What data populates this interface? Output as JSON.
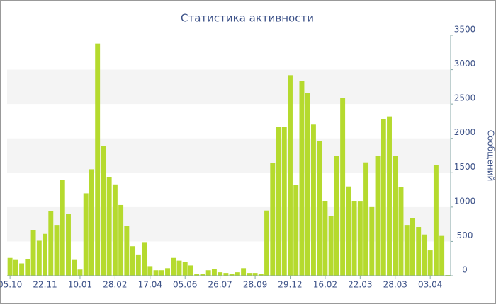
{
  "chart_data": {
    "type": "bar",
    "title": "Статистика активности",
    "y_label": "Сообщений",
    "categories": [
      "05.10",
      null,
      null,
      null,
      null,
      null,
      "22.11",
      null,
      null,
      null,
      null,
      null,
      "10.01",
      null,
      null,
      null,
      null,
      null,
      "28.02",
      null,
      null,
      null,
      null,
      null,
      "17.04",
      null,
      null,
      null,
      null,
      null,
      "05.06",
      null,
      null,
      null,
      null,
      null,
      "26.07",
      null,
      null,
      null,
      null,
      null,
      "28.09",
      null,
      null,
      null,
      null,
      null,
      "29.12",
      null,
      null,
      null,
      null,
      null,
      "16.02",
      null,
      null,
      null,
      null,
      null,
      "22.03",
      null,
      null,
      null,
      null,
      null,
      "28.03",
      null,
      null,
      null,
      null,
      null,
      "03.04",
      null,
      null,
      null
    ],
    "values": [
      260,
      230,
      180,
      240,
      660,
      510,
      610,
      940,
      740,
      1400,
      900,
      230,
      90,
      1200,
      1550,
      3380,
      1890,
      1440,
      1330,
      1030,
      730,
      430,
      310,
      480,
      140,
      80,
      80,
      110,
      260,
      220,
      200,
      150,
      30,
      30,
      80,
      100,
      50,
      40,
      30,
      50,
      110,
      40,
      40,
      30,
      950,
      1640,
      2170,
      2170,
      2920,
      1320,
      2840,
      2660,
      2200,
      1960,
      1090,
      870,
      1750,
      2590,
      1300,
      1090,
      1080,
      1650,
      1000,
      1740,
      2280,
      2320,
      1750,
      1290,
      740,
      840,
      710,
      600,
      370,
      1610,
      580,
      10
    ],
    "color": "#b5da2e",
    "ylim": [
      0,
      3500
    ],
    "yticks": [
      0,
      500,
      1000,
      1500,
      2000,
      2500,
      3000,
      3500
    ],
    "grid": true,
    "band_color": "#f4f4f4"
  }
}
